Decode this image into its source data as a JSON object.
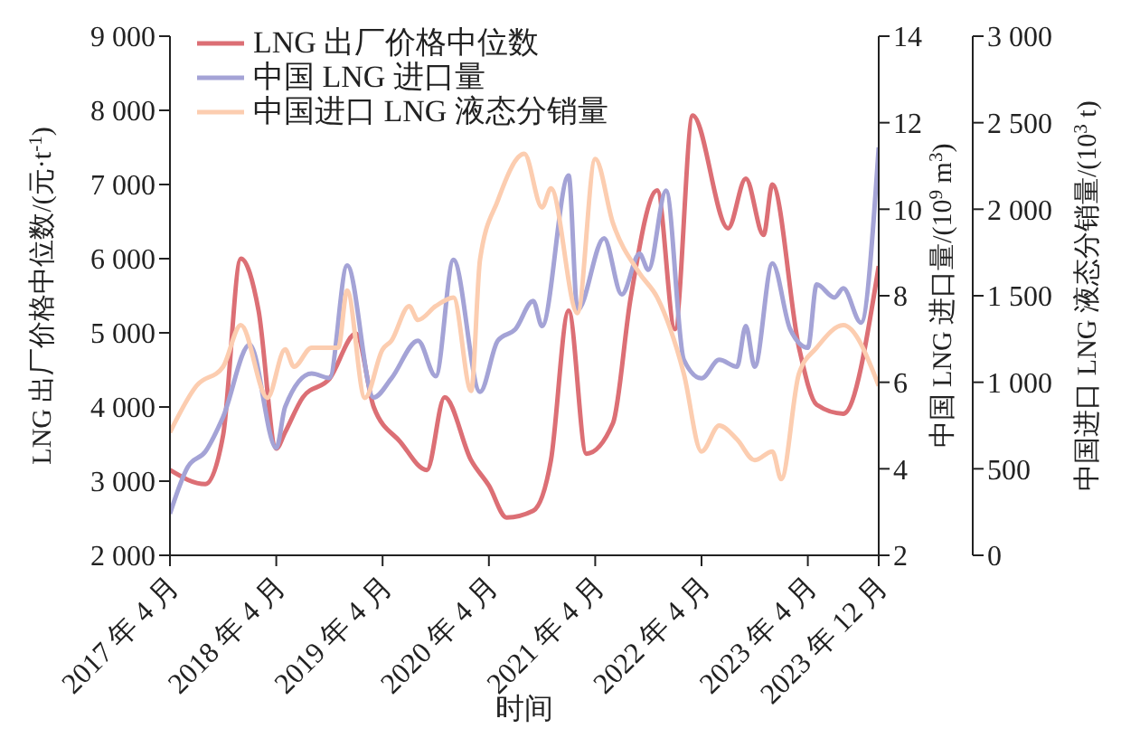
{
  "chart_data": {
    "type": "line",
    "xlabel": "时间",
    "ylabel": "LNG 出厂价格中位数/(元·t$^{-1}$)",
    "y2label": "中国 LNG 进口量/(10$^{9}$ m$^{3}$)",
    "y3label": "中国进口 LNG 液态分销量/(10$^{3}$ t)",
    "xlim": [
      "2017-04",
      "2023-12"
    ],
    "xticks": [
      {
        "value": "2017-04",
        "label": "2017 年 4 月"
      },
      {
        "value": "2018-04",
        "label": "2018 年 4 月"
      },
      {
        "value": "2019-04",
        "label": "2019 年 4 月"
      },
      {
        "value": "2020-04",
        "label": "2020 年 4 月"
      },
      {
        "value": "2021-04",
        "label": "2021 年 4 月"
      },
      {
        "value": "2022-04",
        "label": "2022 年 4 月"
      },
      {
        "value": "2023-04",
        "label": "2023 年 4 月"
      },
      {
        "value": "2023-12",
        "label": "2023 年 12 月"
      }
    ],
    "ylim": [
      2000,
      9000
    ],
    "yticks": [
      {
        "value": 2000,
        "label": "2 000"
      },
      {
        "value": 3000,
        "label": "3 000"
      },
      {
        "value": 4000,
        "label": "4 000"
      },
      {
        "value": 5000,
        "label": "5 000"
      },
      {
        "value": 6000,
        "label": "6 000"
      },
      {
        "value": 7000,
        "label": "7 000"
      },
      {
        "value": 8000,
        "label": "8 000"
      },
      {
        "value": 9000,
        "label": "9 000"
      }
    ],
    "y2lim": [
      2,
      14
    ],
    "y2ticks": [
      2,
      4,
      6,
      8,
      10,
      12,
      14
    ],
    "y3lim": [
      0,
      3000
    ],
    "y3ticks": [
      0,
      500,
      {
        "value": 1000,
        "label": "1 000"
      },
      {
        "value": 1500,
        "label": "1 500"
      },
      {
        "value": 2000,
        "label": "2 000"
      },
      {
        "value": 2500,
        "label": "2 500"
      },
      {
        "value": 3000,
        "label": "3 000"
      }
    ],
    "legend": "top left",
    "marker": "none",
    "line_style": "solid",
    "series": [
      {
        "name": "LNG 出厂价格中位数",
        "color": "#dc6f75",
        "x": [
          "2017-04",
          "2017-08",
          "2017-10",
          "2017-12",
          "2018-02",
          "2018-04",
          "2018-05",
          "2018-07",
          "2018-10",
          "2019-01",
          "2019-03",
          "2019-06",
          "2019-09",
          "2019-11",
          "2020-02",
          "2020-04",
          "2020-06",
          "2020-09",
          "2020-11",
          "2021-01",
          "2021-03",
          "2021-06",
          "2021-08",
          "2021-11",
          "2022-01",
          "2022-03",
          "2022-07",
          "2022-09",
          "2022-11",
          "2022-12",
          "2023-03",
          "2023-05",
          "2023-08",
          "2023-12"
        ],
        "values": [
          3150,
          2960,
          3620,
          6000,
          5300,
          3440,
          3660,
          4130,
          4380,
          4990,
          4000,
          3530,
          3150,
          4130,
          3280,
          2940,
          2510,
          2600,
          3280,
          5300,
          3370,
          3780,
          5470,
          6920,
          5050,
          7930,
          6410,
          7080,
          6320,
          7000,
          4800,
          4030,
          3910,
          5900
        ]
      },
      {
        "name": "中国 LNG 进口量",
        "color": "#a4a3d6",
        "axis": "y2",
        "x": [
          "2017-04",
          "2017-06",
          "2017-08",
          "2017-10",
          "2018-01",
          "2018-04",
          "2018-05",
          "2018-08",
          "2018-10",
          "2018-12",
          "2019-03",
          "2019-05",
          "2019-08",
          "2019-10",
          "2019-12",
          "2020-03",
          "2020-05",
          "2020-07",
          "2020-09",
          "2020-10",
          "2021-01",
          "2021-02",
          "2021-05",
          "2021-07",
          "2021-09",
          "2021-10",
          "2021-12",
          "2022-02",
          "2022-04",
          "2022-06",
          "2022-08",
          "2022-09",
          "2022-10",
          "2022-12",
          "2023-02",
          "2023-04",
          "2023-05",
          "2023-07",
          "2023-08",
          "2023-10",
          "2023-12"
        ],
        "values": [
          2.96,
          4.04,
          4.4,
          5.2,
          6.87,
          4.48,
          5.43,
          6.2,
          6.1,
          8.7,
          5.65,
          6.09,
          6.96,
          6.14,
          8.83,
          5.78,
          6.96,
          7.23,
          7.88,
          7.3,
          10.78,
          7.67,
          9.33,
          8.03,
          8.97,
          8.6,
          10.43,
          6.52,
          6.09,
          6.52,
          6.36,
          7.3,
          6.36,
          8.75,
          7.23,
          6.8,
          8.26,
          7.96,
          8.17,
          7.38,
          11.43
        ]
      },
      {
        "name": "中国进口 LNG 液态分销量",
        "color": "#fccdb0",
        "axis": "y3",
        "x": [
          "2017-04",
          "2017-07",
          "2017-10",
          "2017-12",
          "2018-03",
          "2018-05",
          "2018-06",
          "2018-08",
          "2018-11",
          "2018-12",
          "2019-02",
          "2019-04",
          "2019-05",
          "2019-07",
          "2019-08",
          "2019-10",
          "2019-12",
          "2020-02",
          "2020-03",
          "2020-05",
          "2020-08",
          "2020-10",
          "2020-11",
          "2021-02",
          "2021-04",
          "2021-06",
          "2021-09",
          "2021-11",
          "2022-02",
          "2022-04",
          "2022-06",
          "2022-08",
          "2022-10",
          "2022-12",
          "2023-01",
          "2023-03",
          "2023-05",
          "2023-08",
          "2023-12"
        ],
        "values": [
          710,
          980,
          1090,
          1330,
          910,
          1190,
          1090,
          1200,
          1200,
          1530,
          910,
          1190,
          1240,
          1440,
          1360,
          1440,
          1490,
          950,
          1710,
          2050,
          2320,
          2010,
          2120,
          1400,
          2290,
          1920,
          1630,
          1490,
          1050,
          600,
          750,
          670,
          550,
          600,
          440,
          1050,
          1200,
          1330,
          980
        ]
      }
    ]
  }
}
